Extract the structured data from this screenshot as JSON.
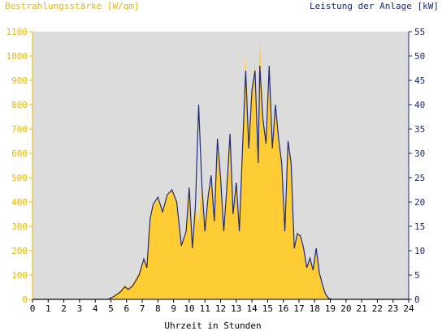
{
  "chart_data": {
    "type": "area",
    "left_axis_label": "Bestrahlungsstärke [W/qm]",
    "right_axis_label": "Leistung der Anlage [kW]",
    "xlabel": "Uhrzeit in Stunden",
    "xlim": [
      0,
      24
    ],
    "ylim_left": [
      0,
      1100
    ],
    "ylim_right": [
      0,
      55
    ],
    "grid": false,
    "colors": {
      "plot_bg": "#dcdcdc",
      "irradiance": "#ffcc33",
      "power": "#1e2a78",
      "left_axis": "#e8b800",
      "right_axis": "#1e2a78",
      "x_axis": "#000000"
    },
    "x_ticks": [
      "0",
      "1",
      "2",
      "3",
      "4",
      "5",
      "6",
      "7",
      "8",
      "9",
      "10",
      "11",
      "12",
      "13",
      "14",
      "15",
      "16",
      "17",
      "18",
      "19",
      "20",
      "21",
      "22",
      "23",
      "24"
    ],
    "y_ticks_left": [
      "0",
      "100",
      "200",
      "300",
      "400",
      "500",
      "600",
      "700",
      "800",
      "900",
      "1000",
      "1100"
    ],
    "y_ticks_right": [
      "0",
      "5",
      "10",
      "15",
      "20",
      "25",
      "30",
      "35",
      "40",
      "45",
      "50",
      "55"
    ],
    "series": [
      {
        "axis": "left",
        "x": [
          0,
          4.8,
          5.2,
          5.6,
          5.9,
          6.1,
          6.4,
          6.8,
          7.1,
          7.3,
          7.5,
          7.7,
          8.0,
          8.3,
          8.6,
          8.9,
          9.2,
          9.5,
          9.8,
          10.0,
          10.2,
          10.4,
          10.6,
          10.8,
          11.0,
          11.2,
          11.4,
          11.6,
          11.8,
          12.0,
          12.2,
          12.4,
          12.6,
          12.8,
          13.0,
          13.2,
          13.4,
          13.6,
          13.8,
          14.0,
          14.2,
          14.4,
          14.5,
          14.7,
          14.9,
          15.1,
          15.3,
          15.5,
          15.7,
          15.9,
          16.1,
          16.3,
          16.5,
          16.7,
          16.9,
          17.1,
          17.3,
          17.5,
          17.7,
          17.9,
          18.1,
          18.3,
          18.5,
          18.7,
          18.9,
          19.1,
          19.3,
          19.5,
          20.0,
          24
        ],
        "y": [
          0,
          0,
          15,
          35,
          60,
          45,
          65,
          110,
          170,
          140,
          320,
          380,
          410,
          360,
          420,
          450,
          400,
          220,
          270,
          460,
          210,
          390,
          310,
          480,
          280,
          420,
          500,
          320,
          630,
          500,
          280,
          460,
          700,
          350,
          480,
          280,
          620,
          1000,
          620,
          860,
          980,
          560,
          1080,
          760,
          640,
          980,
          620,
          800,
          660,
          560,
          280,
          650,
          560,
          210,
          270,
          260,
          210,
          130,
          170,
          120,
          210,
          110,
          60,
          20,
          5,
          0,
          0,
          0,
          0,
          0
        ]
      },
      {
        "axis": "right",
        "x": [
          0,
          4.8,
          5.2,
          5.6,
          5.9,
          6.1,
          6.4,
          6.8,
          7.1,
          7.3,
          7.5,
          7.7,
          8.0,
          8.3,
          8.6,
          8.9,
          9.2,
          9.5,
          9.8,
          10.0,
          10.2,
          10.4,
          10.6,
          10.8,
          11.0,
          11.2,
          11.4,
          11.6,
          11.8,
          12.0,
          12.2,
          12.4,
          12.6,
          12.8,
          13.0,
          13.2,
          13.4,
          13.6,
          13.8,
          14.0,
          14.2,
          14.4,
          14.5,
          14.7,
          14.9,
          15.1,
          15.3,
          15.5,
          15.7,
          15.9,
          16.1,
          16.3,
          16.5,
          16.7,
          16.9,
          17.1,
          17.3,
          17.5,
          17.7,
          17.9,
          18.1,
          18.3,
          18.5,
          18.7,
          18.9,
          19.1,
          19.3,
          19.5,
          20.0,
          24
        ],
        "y": [
          0,
          0,
          0.6,
          1.5,
          2.6,
          2.0,
          2.8,
          5.0,
          8.3,
          6.5,
          16.5,
          19.5,
          21.0,
          18.0,
          21.5,
          22.5,
          20.0,
          11.0,
          14.0,
          23.0,
          10.5,
          19.5,
          40.0,
          24.0,
          14.0,
          21.0,
          25.5,
          16.0,
          33.0,
          25.0,
          14.0,
          23.0,
          34.0,
          17.5,
          24.0,
          14.0,
          31.0,
          47.0,
          31.0,
          43.0,
          47.0,
          28.0,
          48.0,
          37.0,
          32.0,
          48.0,
          31.0,
          40.0,
          33.0,
          28.0,
          14.0,
          32.5,
          28.0,
          10.5,
          13.5,
          13.0,
          10.5,
          6.5,
          8.5,
          6.0,
          10.5,
          5.5,
          3.0,
          1.0,
          0.2,
          0,
          0,
          0,
          0,
          0
        ]
      }
    ]
  }
}
